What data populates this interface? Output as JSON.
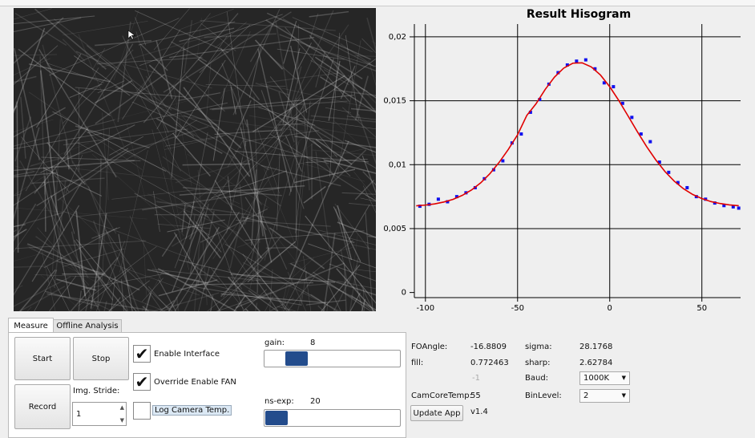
{
  "window": {
    "tabs": [
      "Measure",
      "Offline Analysis"
    ],
    "buttons": {
      "start": "Start",
      "stop": "Stop",
      "record": "Record",
      "update": "Update App"
    },
    "stride": {
      "label": "Img. Stride:",
      "value": 1
    },
    "checkboxes": [
      {
        "label": "Enable Interface",
        "checked": true
      },
      {
        "label": "Override Enable FAN",
        "checked": true
      },
      {
        "label": "Log Camera Temp.",
        "checked": false
      }
    ],
    "sliders": [
      {
        "label": "gain:",
        "value": 8
      },
      {
        "label": "ns-exp:",
        "value": 20
      }
    ],
    "info": {
      "foangle": {
        "label": "FOAngle:",
        "value": -16.8809
      },
      "fill": {
        "label": "fill:",
        "value": 0.772463
      },
      "unknown": {
        "value": -1
      },
      "camcoretemp": {
        "label": "CamCoreTemp:",
        "value": 55
      },
      "sigma": {
        "label": "sigma:",
        "value": 28.1768
      },
      "sharp": {
        "label": "sharp:",
        "value": 2.62784
      },
      "baud": {
        "label": "Baud:",
        "value": "1000K"
      },
      "binlevel": {
        "label": "BinLevel:",
        "value": "2"
      },
      "version": "v1.4"
    }
  },
  "chart_data": {
    "type": "scatter",
    "title": "Result Hisogram",
    "xlim": [
      -106,
      71
    ],
    "xticks": [
      -100,
      -50,
      0,
      50
    ],
    "ylim": [
      -0.0004,
      0.021
    ],
    "yticks": [
      0,
      {
        "value": 0.005,
        "label": "0,005"
      },
      {
        "value": 0.01,
        "label": "0,01"
      },
      {
        "value": 0.015,
        "label": "0,015"
      },
      {
        "value": 0.02,
        "label": "0,02"
      }
    ],
    "grid": true,
    "series": [
      {
        "type": "scatter",
        "color": "#1010ee",
        "x": [
          -103,
          -98,
          -93,
          -88,
          -83,
          -78,
          -73,
          -68,
          -63,
          -58,
          -53,
          -48,
          -43,
          -38,
          -33,
          -28,
          -23,
          -18,
          -13,
          -8,
          -3,
          2,
          7,
          12,
          17,
          22,
          27,
          32,
          37,
          42,
          47,
          52,
          57,
          62,
          67,
          70
        ],
        "values": [
          0.00675,
          0.0069,
          0.0073,
          0.0071,
          0.0075,
          0.0078,
          0.0082,
          0.0089,
          0.0096,
          0.0103,
          0.0117,
          0.0124,
          0.0141,
          0.0151,
          0.0163,
          0.0172,
          0.0178,
          0.0181,
          0.0182,
          0.0175,
          0.0164,
          0.0161,
          0.0148,
          0.0137,
          0.0124,
          0.0118,
          0.0102,
          0.0094,
          0.0086,
          0.0082,
          0.0075,
          0.0073,
          0.007,
          0.0068,
          0.0067,
          0.0066
        ]
      },
      {
        "type": "line",
        "color": "#e00000",
        "x": [
          -105,
          -100,
          -95,
          -90,
          -85,
          -80,
          -75,
          -70,
          -65,
          -60,
          -55,
          -50,
          -45,
          -40,
          -35,
          -30,
          -25,
          -20,
          -15,
          -10,
          -5,
          0,
          5,
          10,
          15,
          20,
          25,
          30,
          35,
          40,
          45,
          50,
          55,
          60,
          65,
          70
        ],
        "values": [
          0.00678,
          0.00684,
          0.00693,
          0.00708,
          0.00729,
          0.0076,
          0.00802,
          0.00858,
          0.0093,
          0.01018,
          0.0112,
          0.01234,
          0.01385,
          0.01476,
          0.01589,
          0.01685,
          0.01755,
          0.01794,
          0.01797,
          0.01765,
          0.01701,
          0.0161,
          0.015,
          0.0138,
          0.01258,
          0.01142,
          0.01037,
          0.00946,
          0.00871,
          0.00812,
          0.00767,
          0.00735,
          0.00711,
          0.00696,
          0.00685,
          0.00679
        ]
      }
    ]
  }
}
